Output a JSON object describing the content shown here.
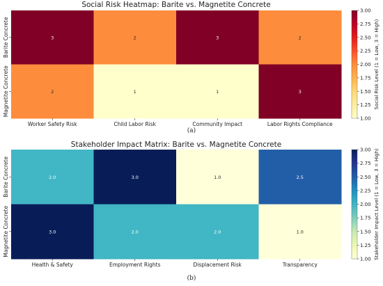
{
  "chart_data": [
    {
      "type": "heatmap",
      "title": "Social Risk Heatmap: Barite vs. Magnetite Concrete",
      "rows": [
        "Barite Concrete",
        "Magnetite Concrete"
      ],
      "columns": [
        "Worker Safety Risk",
        "Child Labor Risk",
        "Community Impact",
        "Labor Rights Compliance"
      ],
      "values": [
        [
          3,
          2,
          3,
          2
        ],
        [
          2,
          1,
          1,
          3
        ]
      ],
      "cell_labels": [
        [
          "3",
          "2",
          "3",
          "2"
        ],
        [
          "2",
          "1",
          "1",
          "3"
        ]
      ],
      "colormap": "YlOrRd",
      "colorbar": {
        "label": "Social Risk Level (1 = Low, 3 = High)",
        "range": [
          1.0,
          3.0
        ],
        "ticks": [
          "1.00",
          "1.25",
          "1.50",
          "1.75",
          "2.00",
          "2.25",
          "2.50",
          "2.75",
          "3.00"
        ]
      },
      "caption": "(a)"
    },
    {
      "type": "heatmap",
      "title": "Stakeholder Impact Matrix: Barite vs. Magnetite Concrete",
      "rows": [
        "Barite Concrete",
        "Magnetite Concrete"
      ],
      "columns": [
        "Health & Safety",
        "Employment Rights",
        "Displacement Risk",
        "Transparency"
      ],
      "values": [
        [
          2.0,
          3.0,
          1.0,
          2.5
        ],
        [
          3.0,
          2.0,
          2.0,
          1.0
        ]
      ],
      "cell_labels": [
        [
          "2.0",
          "3.0",
          "1.0",
          "2.5"
        ],
        [
          "3.0",
          "2.0",
          "2.0",
          "1.0"
        ]
      ],
      "colormap": "YlGnBu",
      "colorbar": {
        "label": "Stakeholder Impact Level (1 = Low, 3 = High)",
        "range": [
          1.0,
          3.0
        ],
        "ticks": [
          "1.00",
          "1.25",
          "1.50",
          "1.75",
          "2.00",
          "2.25",
          "2.50",
          "2.75",
          "3.00"
        ]
      },
      "caption": "(b)"
    }
  ]
}
